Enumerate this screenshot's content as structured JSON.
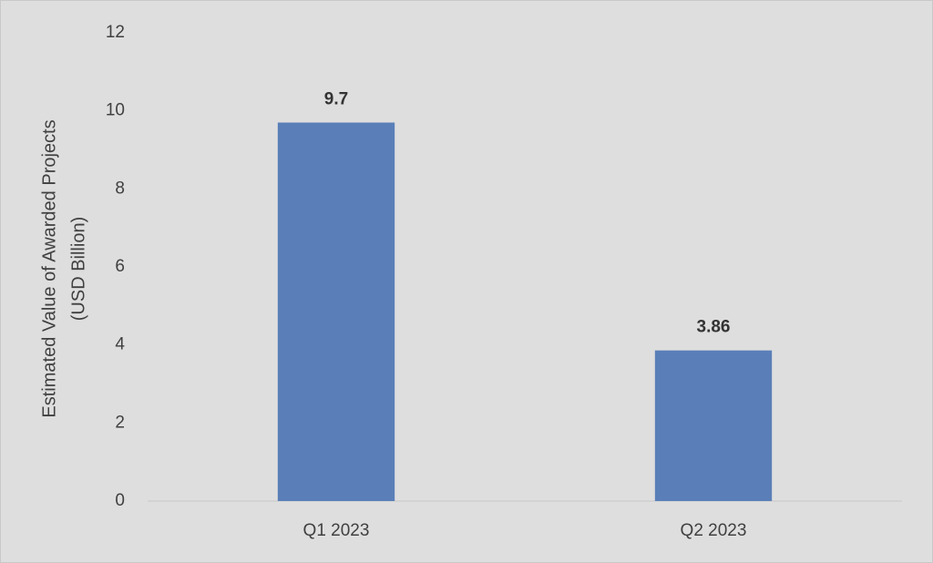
{
  "chart_data": {
    "type": "bar",
    "ylabel": [
      "Estimated Value of Awarded Projects",
      "(USD Billion)"
    ],
    "categories": [
      "Q1 2023",
      "Q2 2023"
    ],
    "values": [
      9.7,
      3.86
    ],
    "color": "#5a7fb8",
    "ylim": [
      0,
      12
    ],
    "yticks": [
      0,
      2,
      4,
      6,
      8,
      10,
      12
    ],
    "grid": false,
    "data_labels": true
  }
}
